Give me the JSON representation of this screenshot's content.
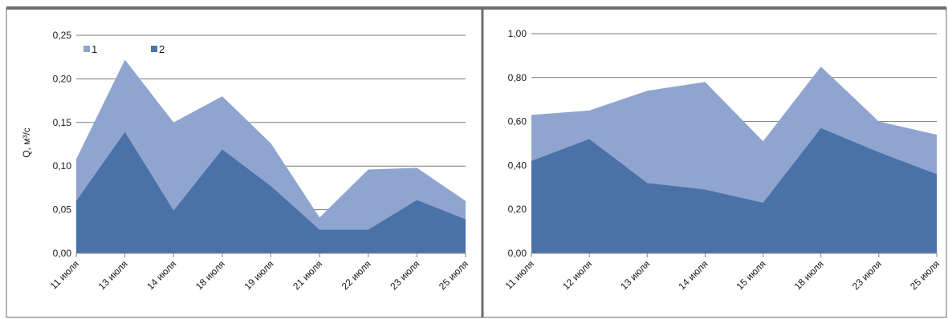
{
  "colors": {
    "series1": "#8fa5cf",
    "series2": "#4a72a8",
    "grid": "#7a7a7a",
    "frame": "#6e6e6e"
  },
  "chart_data": [
    {
      "type": "area",
      "stacked": true,
      "ylabel": "Q, м³/с",
      "ylim": [
        0,
        0.25
      ],
      "yticks": [
        "0,00",
        "0,05",
        "0,10",
        "0,15",
        "0,20",
        "0,25"
      ],
      "grid": true,
      "legend_position": "top-left",
      "categories": [
        "11 июля",
        "13 июля",
        "14 июля",
        "18 июля",
        "19 июля",
        "21 июля",
        "22 июля",
        "23 июля",
        "25 июля"
      ],
      "series": [
        {
          "name": "1",
          "values": [
            0.048,
            0.083,
            0.101,
            0.061,
            0.049,
            0.014,
            0.069,
            0.037,
            0.021
          ]
        },
        {
          "name": "2",
          "values": [
            0.06,
            0.139,
            0.049,
            0.119,
            0.077,
            0.027,
            0.027,
            0.061,
            0.039
          ]
        }
      ]
    },
    {
      "type": "area",
      "stacked": true,
      "ylim": [
        0,
        1.0
      ],
      "yticks": [
        "0,00",
        "0,20",
        "0,40",
        "0,60",
        "0,80",
        "1,00"
      ],
      "grid": true,
      "categories": [
        "11 июля",
        "12 июля",
        "13 июля",
        "14 июля",
        "15 июля",
        "18 июля",
        "23 июля",
        "25 июля"
      ],
      "series": [
        {
          "name": "1",
          "values": [
            0.21,
            0.13,
            0.42,
            0.49,
            0.28,
            0.28,
            0.14,
            0.18
          ]
        },
        {
          "name": "2",
          "values": [
            0.42,
            0.52,
            0.32,
            0.29,
            0.23,
            0.57,
            0.46,
            0.36
          ]
        }
      ]
    }
  ]
}
